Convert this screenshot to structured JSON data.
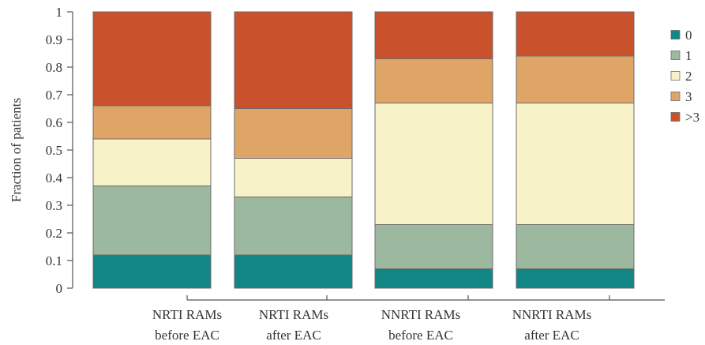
{
  "chart_data": {
    "type": "bar",
    "stacked": true,
    "title": "",
    "xlabel": "",
    "ylabel": "Fraction of patients",
    "ylim": [
      0,
      1
    ],
    "yticks": [
      "0",
      "0.1",
      "0.2",
      "0.3",
      "0.4",
      "0.5",
      "0.6",
      "0.7",
      "0.8",
      "0.9",
      "1"
    ],
    "grid": false,
    "legend_position": "top-right",
    "categories": [
      [
        "NRTI RAMs",
        "before EAC"
      ],
      [
        "NRTI RAMs",
        "after EAC"
      ],
      [
        "NNRTI RAMs",
        "before EAC"
      ],
      [
        "NNRTI RAMs",
        "after EAC"
      ]
    ],
    "series": [
      {
        "name": "0",
        "color": "#128585",
        "values": [
          0.12,
          0.12,
          0.07,
          0.07
        ]
      },
      {
        "name": "1",
        "color": "#9cb9a0",
        "values": [
          0.25,
          0.21,
          0.16,
          0.16
        ]
      },
      {
        "name": "2",
        "color": "#f8f2c8",
        "values": [
          0.17,
          0.14,
          0.44,
          0.44
        ]
      },
      {
        "name": "3",
        "color": "#dea567",
        "values": [
          0.12,
          0.18,
          0.16,
          0.17
        ]
      },
      {
        "name": ">3",
        "color": "#c9512b",
        "values": [
          0.34,
          0.35,
          0.17,
          0.16
        ]
      }
    ]
  }
}
